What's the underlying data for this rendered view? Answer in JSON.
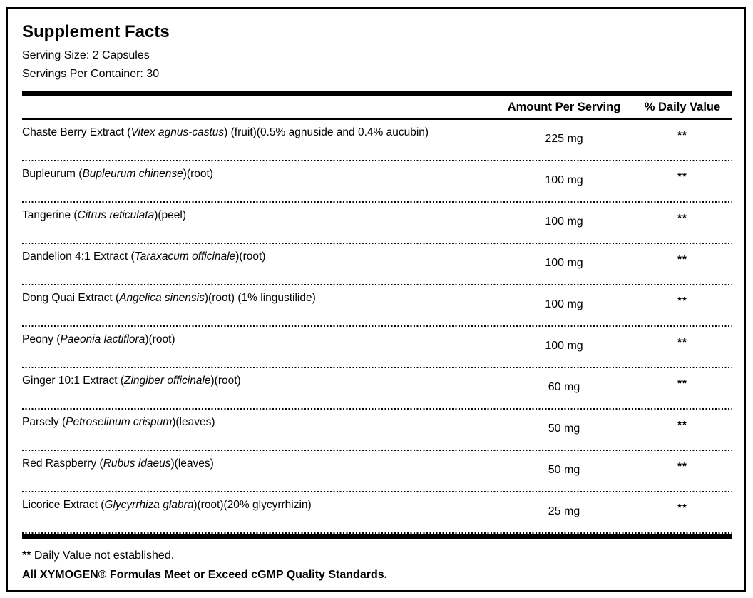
{
  "colors": {
    "text": "#000000",
    "background": "#ffffff",
    "rule": "#000000"
  },
  "header": {
    "title": "Supplement Facts",
    "serving_size": "Serving Size: 2 Capsules",
    "servings_per_container": "Servings Per Container: 30"
  },
  "columns": {
    "amount": "Amount Per Serving",
    "daily_value": "% Daily Value"
  },
  "rows": [
    {
      "prefix": "Chaste Berry Extract (",
      "latin": "Vitex agnus-castus",
      "suffix": ") (fruit)(0.5% agnuside and 0.4% aucubin)",
      "amount": "225 mg",
      "dv": "**"
    },
    {
      "prefix": "Bupleurum (",
      "latin": "Bupleurum chinense",
      "suffix": ")(root)",
      "amount": "100 mg",
      "dv": "**"
    },
    {
      "prefix": "Tangerine (",
      "latin": "Citrus reticulata",
      "suffix": ")(peel)",
      "amount": "100 mg",
      "dv": "**"
    },
    {
      "prefix": "Dandelion 4:1 Extract (",
      "latin": "Taraxacum officinale",
      "suffix": ")(root)",
      "amount": "100 mg",
      "dv": "**"
    },
    {
      "prefix": "Dong Quai Extract (",
      "latin": "Angelica sinensis",
      "suffix": ")(root) (1% lingustilide)",
      "amount": "100 mg",
      "dv": "**"
    },
    {
      "prefix": "Peony (",
      "latin": "Paeonia lactiflora",
      "suffix": ")(root)",
      "amount": "100 mg",
      "dv": "**"
    },
    {
      "prefix": "Ginger 10:1 Extract (",
      "latin": "Zingiber officinale",
      "suffix": ")(root)",
      "amount": "60 mg",
      "dv": "**"
    },
    {
      "prefix": "Parsely (",
      "latin": "Petroselinum crispum",
      "suffix": ")(leaves)",
      "amount": "50 mg",
      "dv": "**"
    },
    {
      "prefix": "Red Raspberry (",
      "latin": "Rubus idaeus",
      "suffix": ")(leaves)",
      "amount": "50 mg",
      "dv": "**"
    },
    {
      "prefix": "Licorice Extract (",
      "latin": "Glycyrrhiza glabra",
      "suffix": ")(root)(20% glycyrrhizin)",
      "amount": "25 mg",
      "dv": "**"
    }
  ],
  "footnote": {
    "symbol": "**",
    "text": " Daily Value not established."
  },
  "quality_statement": "All XYMOGEN® Formulas Meet or Exceed cGMP Quality Standards."
}
